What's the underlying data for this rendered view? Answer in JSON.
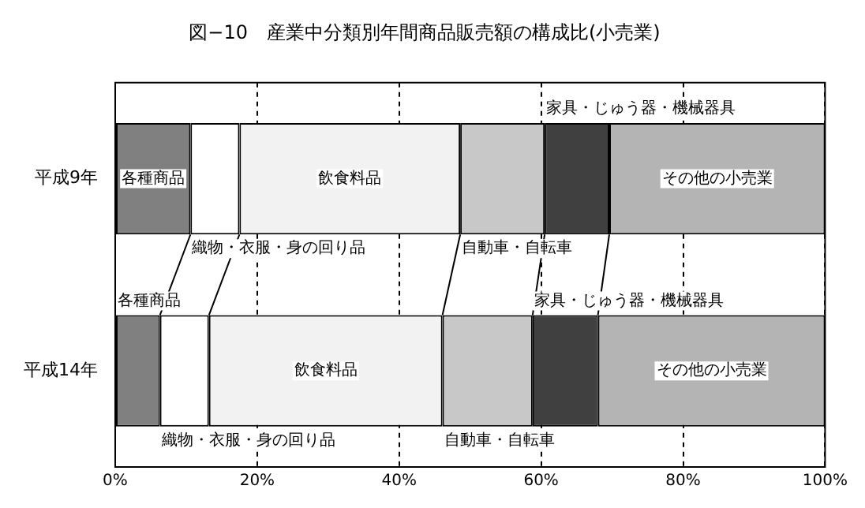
{
  "chart_data": {
    "type": "bar",
    "orientation": "horizontal",
    "stacked": true,
    "title": "図−10　産業中分類別年間商品販売額の構成比(小売業)",
    "categories": [
      "平成9年",
      "平成14年"
    ],
    "series": [
      {
        "name": "各種商品",
        "color": "#808080",
        "values": [
          10.6,
          6.3
        ]
      },
      {
        "name": "織物・衣服・身の回り品",
        "color": "#ffffff",
        "values": [
          6.9,
          6.9
        ]
      },
      {
        "name": "飲食料品",
        "color": "#f2f2f2",
        "values": [
          31.1,
          32.9
        ]
      },
      {
        "name": "自動車・自転車",
        "color": "#c8c8c8",
        "values": [
          11.9,
          12.7
        ]
      },
      {
        "name": "家具・じゅう器・機械器具",
        "color": "#404040",
        "values": [
          9.1,
          9.2
        ]
      },
      {
        "name": "その他の小売業",
        "color": "#b4b4b4",
        "values": [
          30.4,
          32.0
        ]
      }
    ],
    "xlim": [
      0,
      100
    ],
    "xticks": [
      {
        "value": 0,
        "label": "0%"
      },
      {
        "value": 20,
        "label": "20%"
      },
      {
        "value": 40,
        "label": "40%"
      },
      {
        "value": 60,
        "label": "60%"
      },
      {
        "value": 80,
        "label": "80%"
      },
      {
        "value": 100,
        "label": "100%"
      }
    ],
    "grid": "x",
    "legend": false
  }
}
